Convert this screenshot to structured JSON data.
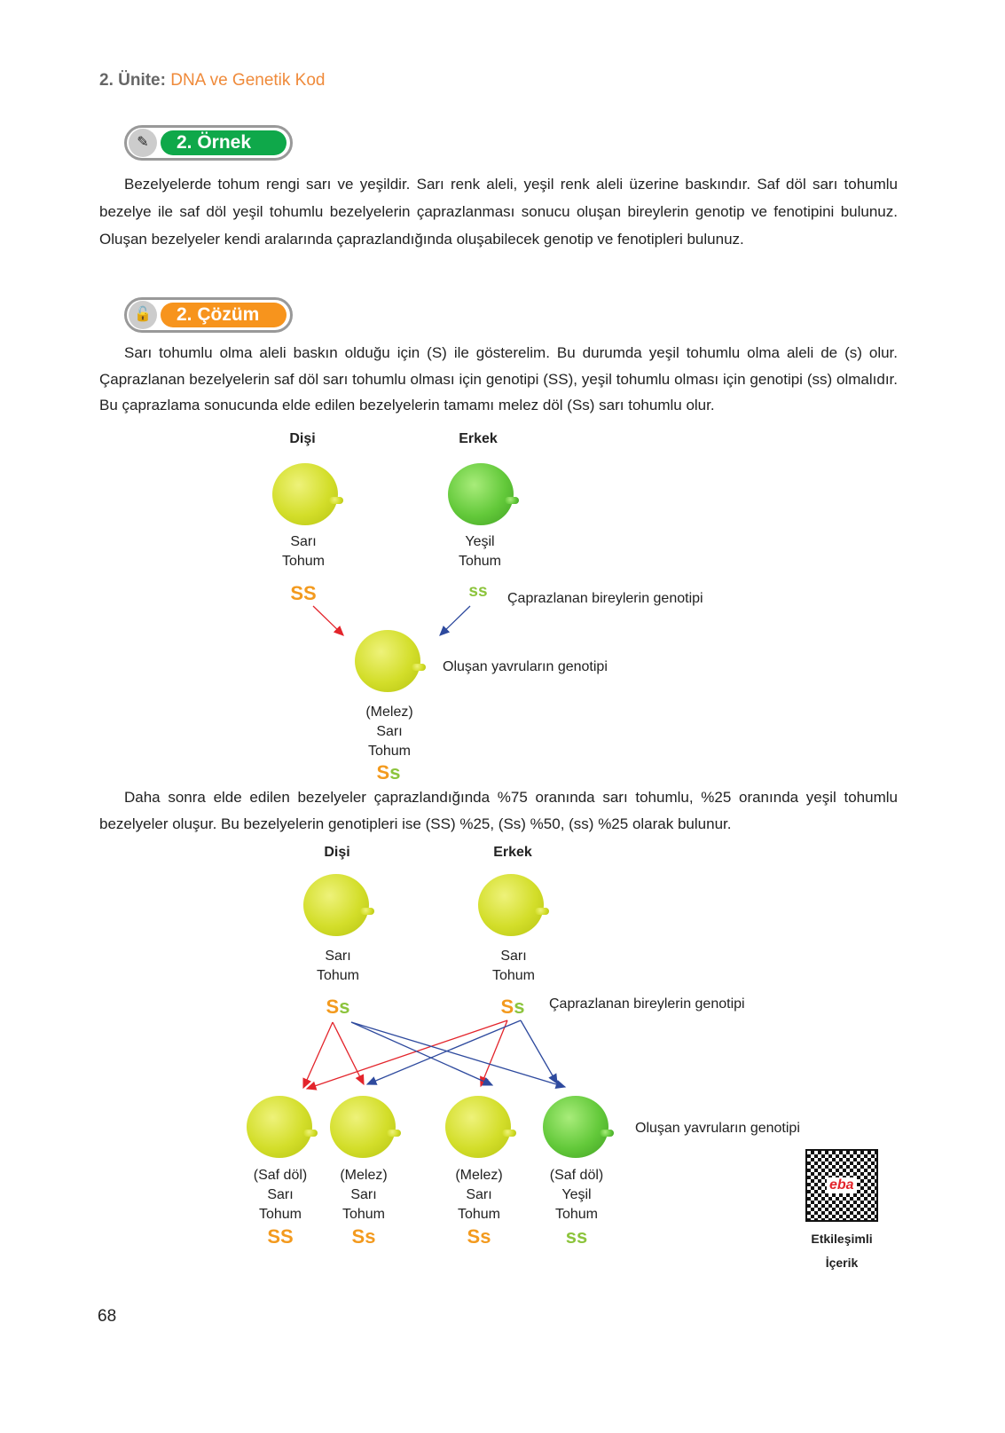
{
  "header": {
    "unit_label": "2. Ünite:",
    "unit_title": "DNA ve Genetik Kod"
  },
  "example": {
    "badge": "2. Örnek",
    "icon": "pencil-ruler-icon",
    "color": "#0fa84a",
    "text": "Bezelyelerde tohum rengi sarı ve yeşildir. Sarı renk aleli, yeşil renk aleli üzerine baskındır. Saf döl sarı tohumlu bezelye ile saf döl yeşil tohumlu bezelyelerin çaprazlanması sonucu oluşan bireylerin genotip ve fenotipini bulunuz. Oluşan bezelyeler kendi aralarında çaprazlandığında oluşabilecek genotip ve fenotipleri bulunuz."
  },
  "solution": {
    "badge": "2. Çözüm",
    "icon": "unlocked-padlock-icon",
    "color": "#f7941d",
    "text1": "Sarı tohumlu olma aleli baskın olduğu için (S) ile gösterelim. Bu durumda yeşil tohumlu olma aleli de (s) olur. Çaprazlanan bezelyelerin saf döl sarı tohumlu olması için genotipi (SS), yeşil tohumlu olması için genotipi (ss) olmalıdır. Bu çaprazlama sonucunda elde edilen bezelyelerin tamamı melez döl (Ss) sarı tohumlu olur.",
    "text2": "Daha sonra elde edilen bezelyeler çaprazlandığında %75 oranında sarı tohumlu, %25 oranında yeşil tohumlu bezelyeler oluşur. Bu bezelyelerin genotipleri ise (SS) %25, (Ss) %50, (ss) %25 olarak bulunur."
  },
  "cross1": {
    "female": "Dişi",
    "male": "Erkek",
    "female_pheno": [
      "Sarı",
      "Tohum"
    ],
    "male_pheno": [
      "Yeşil",
      "Tohum"
    ],
    "female_gt": "SS",
    "male_gt": "ss",
    "parents_note": "Çaprazlanan bireylerin genotipi",
    "offspring_note": "Oluşan yavruların genotipi",
    "child_pheno": [
      "(Melez)",
      "Sarı",
      "Tohum"
    ],
    "child_gt": [
      "S",
      "s"
    ]
  },
  "cross2": {
    "female": "Dişi",
    "male": "Erkek",
    "female_pheno": [
      "Sarı",
      "Tohum"
    ],
    "male_pheno": [
      "Sarı",
      "Tohum"
    ],
    "female_gt": [
      "S",
      "s"
    ],
    "male_gt": [
      "S",
      "s"
    ],
    "parents_note": "Çaprazlanan bireylerin genotipi",
    "offspring_note": "Oluşan yavruların genotipi",
    "children": [
      {
        "pheno": [
          "(Saf döl)",
          "Sarı",
          "Tohum"
        ],
        "gt": "SS",
        "color": "yellow"
      },
      {
        "pheno": [
          "(Melez)",
          "Sarı",
          "Tohum"
        ],
        "gt": "Ss",
        "color": "yellow"
      },
      {
        "pheno": [
          "(Melez)",
          "Sarı",
          "Tohum"
        ],
        "gt": "Ss",
        "color": "yellow"
      },
      {
        "pheno": [
          "(Saf döl)",
          "Yeşil",
          "Tohum"
        ],
        "gt": "ss",
        "color": "green"
      }
    ]
  },
  "qr": {
    "label1": "Etkileşimli",
    "label2": "İçerik",
    "logo": "eba"
  },
  "page_number": "68"
}
